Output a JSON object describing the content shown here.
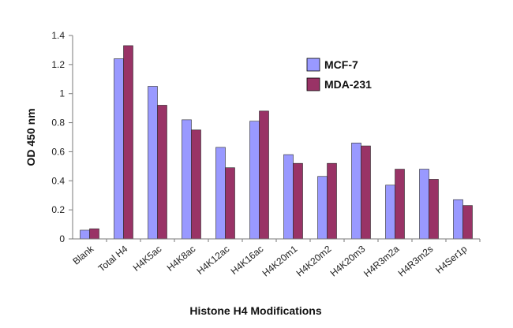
{
  "chart_data": {
    "type": "bar",
    "title": "",
    "xlabel": "Histone H4 Modifications",
    "ylabel": "OD 450 nm",
    "ylim": [
      0,
      1.4
    ],
    "yticks": [
      "0",
      "0.2",
      "0.4",
      "0.6",
      "0.8",
      "1",
      "1.2",
      "1.4"
    ],
    "grid": false,
    "legend_position": "top-right",
    "categories": [
      "Blank",
      "Total H4",
      "H4K5ac",
      "H4K8ac",
      "H4K12ac",
      "H4K16ac",
      "H4K20m1",
      "H4K20m2",
      "H4K20m3",
      "H4R3m2a",
      "H4R3m2s",
      "H4Ser1p"
    ],
    "series": [
      {
        "name": "MCF-7",
        "color": "#9999ff",
        "values": [
          0.06,
          1.24,
          1.05,
          0.82,
          0.63,
          0.81,
          0.58,
          0.43,
          0.66,
          0.37,
          0.48,
          0.27
        ]
      },
      {
        "name": "MDA-231",
        "color": "#993366",
        "values": [
          0.07,
          1.33,
          0.92,
          0.75,
          0.49,
          0.88,
          0.52,
          0.52,
          0.64,
          0.48,
          0.41,
          0.23
        ]
      }
    ]
  }
}
